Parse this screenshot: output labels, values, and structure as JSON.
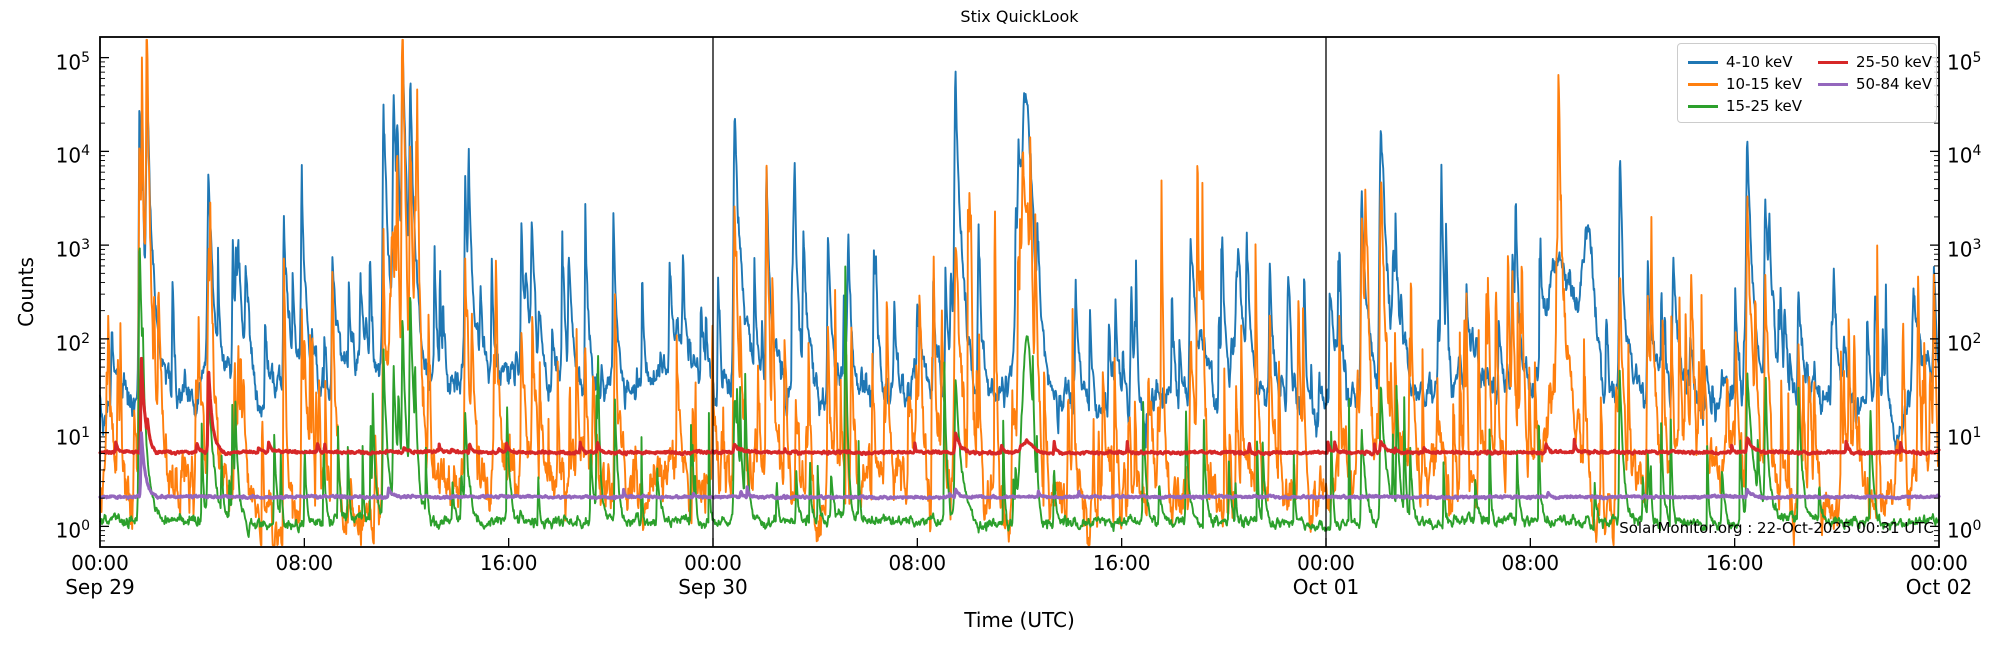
{
  "figure": {
    "title": "Stix QuickLook"
  },
  "axes": {
    "ylabel": "Counts",
    "xlabel": "Time (UTC)",
    "y_ticks": [
      {
        "base": "10",
        "exp": "0"
      },
      {
        "base": "10",
        "exp": "1"
      },
      {
        "base": "10",
        "exp": "2"
      },
      {
        "base": "10",
        "exp": "3"
      },
      {
        "base": "10",
        "exp": "4"
      },
      {
        "base": "10",
        "exp": "5"
      }
    ],
    "x_time_ticks": [
      {
        "t": 0,
        "label": "00:00"
      },
      {
        "t": 8,
        "label": "08:00"
      },
      {
        "t": 16,
        "label": "16:00"
      },
      {
        "t": 24,
        "label": "00:00"
      },
      {
        "t": 32,
        "label": "08:00"
      },
      {
        "t": 40,
        "label": "16:00"
      },
      {
        "t": 48,
        "label": "00:00"
      },
      {
        "t": 56,
        "label": "08:00"
      },
      {
        "t": 64,
        "label": "16:00"
      },
      {
        "t": 72,
        "label": "00:00"
      }
    ],
    "x_date_ticks": [
      {
        "t": 0,
        "label": "Sep 29"
      },
      {
        "t": 24,
        "label": "Sep 30"
      },
      {
        "t": 48,
        "label": "Oct 01"
      },
      {
        "t": 72,
        "label": "Oct 02"
      }
    ]
  },
  "annotation": "SolarMonitor.org : 22-Oct-2025 00:31 UTC",
  "legend": {
    "entries": [
      {
        "label": "4-10 keV"
      },
      {
        "label": "10-15 keV"
      },
      {
        "label": "15-25 keV"
      },
      {
        "label": "25-50 keV"
      },
      {
        "label": "50-84 keV"
      }
    ]
  },
  "chart_data": {
    "type": "line",
    "title": "Stix QuickLook",
    "xlabel": "Time (UTC)",
    "ylabel": "Counts",
    "y_scale": "log",
    "ylim": [
      1,
      100000
    ],
    "ylim_log": [
      -0.22,
      5.22
    ],
    "x_range_hours": [
      0,
      72
    ],
    "x_start_date": "Sep 29",
    "x_end_date": "Oct 02",
    "day_boundary_lines_hours": [
      24,
      48
    ],
    "grid": false,
    "legend_position": "upper right",
    "series": [
      {
        "name": "4-10 keV",
        "color": "#1f77b4",
        "lw": 1.9,
        "seed": 101,
        "baseline_log": 1.48,
        "wander": [
          {
            "amp": 0.22,
            "tau": 1.5
          },
          {
            "amp": 0.16,
            "tau": 0.08
          }
        ],
        "minor_spikes": {
          "count": 100,
          "log_lo": 1.9,
          "log_hi": 2.85,
          "wmin": 0.015,
          "wmax": 0.06
        },
        "peaks": [
          [
            0.3,
            18,
            0.25
          ],
          [
            1.55,
            80000,
            0.07
          ],
          [
            1.85,
            12000,
            0.1
          ],
          [
            4.25,
            5000,
            0.09
          ],
          [
            5.2,
            700,
            0.05
          ],
          [
            6.4,
            12,
            0.25
          ],
          [
            7.2,
            1800,
            0.06
          ],
          [
            7.9,
            2000,
            0.06
          ],
          [
            9.1,
            1000,
            0.06
          ],
          [
            10.2,
            300,
            0.05
          ],
          [
            11.1,
            15000,
            0.08
          ],
          [
            11.5,
            9000,
            0.09
          ],
          [
            11.85,
            12000,
            0.08
          ],
          [
            12.15,
            7000,
            0.08
          ],
          [
            13.1,
            600,
            0.05
          ],
          [
            14.3,
            1800,
            0.06
          ],
          [
            14.9,
            250,
            0.05
          ],
          [
            16.5,
            800,
            0.06
          ],
          [
            16.9,
            750,
            0.05
          ],
          [
            18.1,
            800,
            0.05
          ],
          [
            19.0,
            350,
            0.05
          ],
          [
            20.1,
            1500,
            0.05
          ],
          [
            21.6,
            25,
            0.3
          ],
          [
            22.3,
            400,
            0.05
          ],
          [
            24.85,
            16000,
            0.1
          ],
          [
            26.1,
            2400,
            0.06
          ],
          [
            27.2,
            400,
            0.05
          ],
          [
            28.5,
            2000,
            0.06
          ],
          [
            29.3,
            400,
            0.05
          ],
          [
            30.3,
            1000,
            0.05
          ],
          [
            32.0,
            200,
            0.06
          ],
          [
            33.5,
            28000,
            0.1
          ],
          [
            34.4,
            700,
            0.05
          ],
          [
            36.3,
            13000,
            0.28
          ],
          [
            38.2,
            400,
            0.05
          ],
          [
            39.5,
            260,
            0.05
          ],
          [
            40.6,
            14,
            0.3
          ],
          [
            42.7,
            950,
            0.1
          ],
          [
            44.5,
            320,
            0.12
          ],
          [
            45.8,
            950,
            0.06
          ],
          [
            47.3,
            13,
            0.4
          ],
          [
            49.4,
            4500,
            0.08
          ],
          [
            50.15,
            12000,
            0.1
          ],
          [
            52.5,
            420,
            0.05
          ],
          [
            53.5,
            260,
            0.05
          ],
          [
            55.3,
            800,
            0.06
          ],
          [
            57.2,
            1500,
            0.5
          ],
          [
            58.3,
            1200,
            0.25
          ],
          [
            59.5,
            1800,
            0.06
          ],
          [
            60.6,
            900,
            0.07
          ],
          [
            61.6,
            800,
            0.07
          ],
          [
            63.0,
            15,
            0.3
          ],
          [
            64.5,
            12000,
            0.1
          ],
          [
            65.2,
            2500,
            0.08
          ],
          [
            66.5,
            600,
            0.06
          ],
          [
            67.8,
            300,
            0.05
          ],
          [
            69.5,
            400,
            0.05
          ],
          [
            70.3,
            9,
            0.4
          ],
          [
            71.0,
            250,
            0.08
          ],
          [
            71.8,
            400,
            0.05
          ]
        ]
      },
      {
        "name": "10-15 keV",
        "color": "#ff7f0e",
        "lw": 1.9,
        "seed": 202,
        "baseline_log": 0.38,
        "wander": [
          {
            "amp": 0.3,
            "tau": 1.2
          },
          {
            "amp": 0.26,
            "tau": 0.07
          }
        ],
        "minor_spikes": {
          "count": 180,
          "log_lo": 1.2,
          "log_hi": 2.2,
          "wmin": 0.012,
          "wmax": 0.05
        },
        "peaks": [
          [
            1.55,
            13000,
            0.07
          ],
          [
            1.85,
            1200,
            0.1
          ],
          [
            4.25,
            600,
            0.09
          ],
          [
            7.2,
            300,
            0.05
          ],
          [
            7.9,
            250,
            0.05
          ],
          [
            9.1,
            200,
            0.05
          ],
          [
            11.1,
            1400,
            0.07
          ],
          [
            11.45,
            900,
            0.18
          ],
          [
            11.85,
            1450,
            0.07
          ],
          [
            12.15,
            1250,
            0.07
          ],
          [
            14.3,
            250,
            0.06
          ],
          [
            16.5,
            130,
            0.05
          ],
          [
            24.85,
            2000,
            0.1
          ],
          [
            26.1,
            300,
            0.06
          ],
          [
            28.5,
            200,
            0.06
          ],
          [
            33.5,
            1800,
            0.1
          ],
          [
            36.3,
            1200,
            0.26
          ],
          [
            42.7,
            130,
            0.1
          ],
          [
            45.8,
            140,
            0.06
          ],
          [
            49.4,
            650,
            0.08
          ],
          [
            50.15,
            2500,
            0.1
          ],
          [
            55.3,
            120,
            0.06
          ],
          [
            57.2,
            160,
            0.5
          ],
          [
            59.5,
            400,
            0.06
          ],
          [
            60.6,
            200,
            0.07
          ],
          [
            64.5,
            2500,
            0.1
          ],
          [
            65.2,
            350,
            0.08
          ],
          [
            66.5,
            130,
            0.06
          ],
          [
            71.8,
            160,
            0.05
          ]
        ]
      },
      {
        "name": "15-25 keV",
        "color": "#2ca02c",
        "lw": 1.9,
        "seed": 303,
        "baseline_log": 0.05,
        "wander": [
          {
            "amp": 0.035,
            "tau": 1.5
          },
          {
            "amp": 0.05,
            "tau": 0.06
          }
        ],
        "minor_spikes": {
          "count": 85,
          "log_lo": 0.45,
          "log_hi": 1.4,
          "wmin": 0.01,
          "wmax": 0.04
        },
        "peaks": [
          [
            1.55,
            1100,
            0.07
          ],
          [
            4.25,
            30,
            0.08
          ],
          [
            11.1,
            65,
            0.06
          ],
          [
            11.5,
            35,
            0.06
          ],
          [
            11.85,
            75,
            0.06
          ],
          [
            12.15,
            125,
            0.07
          ],
          [
            14.3,
            12,
            0.05
          ],
          [
            24.85,
            28,
            0.08
          ],
          [
            33.5,
            40,
            0.08
          ],
          [
            36.3,
            130,
            0.2
          ],
          [
            49.4,
            12,
            0.06
          ],
          [
            50.15,
            35,
            0.08
          ],
          [
            59.5,
            45,
            0.05
          ],
          [
            64.5,
            45,
            0.08
          ],
          [
            65.2,
            12,
            0.06
          ],
          [
            66.5,
            30,
            0.05
          ]
        ]
      },
      {
        "name": "25-50 keV",
        "color": "#d62728",
        "lw": 3.1,
        "seed": 404,
        "baseline_log": 0.789,
        "wander": [
          {
            "amp": 0.006,
            "tau": 0.5
          },
          {
            "amp": 0.012,
            "tau": 0.04
          }
        ],
        "minor_spikes": {
          "count": 30,
          "log_lo": 0.83,
          "log_hi": 0.95,
          "wmin": 0.01,
          "wmax": 0.03
        },
        "peaks": [
          [
            1.62,
            60,
            0.05
          ],
          [
            4.25,
            50,
            0.05
          ],
          [
            11.9,
            7,
            0.04
          ],
          [
            24.85,
            7.5,
            0.06
          ],
          [
            33.5,
            10,
            0.06
          ],
          [
            36.3,
            8,
            0.2
          ],
          [
            50.15,
            8,
            0.06
          ],
          [
            64.5,
            9,
            0.06
          ]
        ]
      },
      {
        "name": "50-84 keV",
        "color": "#9467bd",
        "lw": 3.1,
        "seed": 505,
        "baseline_log": 0.314,
        "wander": [
          {
            "amp": 0.004,
            "tau": 0.5
          },
          {
            "amp": 0.01,
            "tau": 0.04
          }
        ],
        "minor_spikes": {
          "count": 8,
          "log_lo": 0.36,
          "log_hi": 0.42,
          "wmin": 0.01,
          "wmax": 0.02
        },
        "peaks": [
          [
            1.62,
            10,
            0.05
          ],
          [
            11.3,
            2.6,
            0.04
          ],
          [
            33.5,
            2.5,
            0.05
          ],
          [
            64.5,
            2.5,
            0.05
          ]
        ]
      }
    ]
  }
}
